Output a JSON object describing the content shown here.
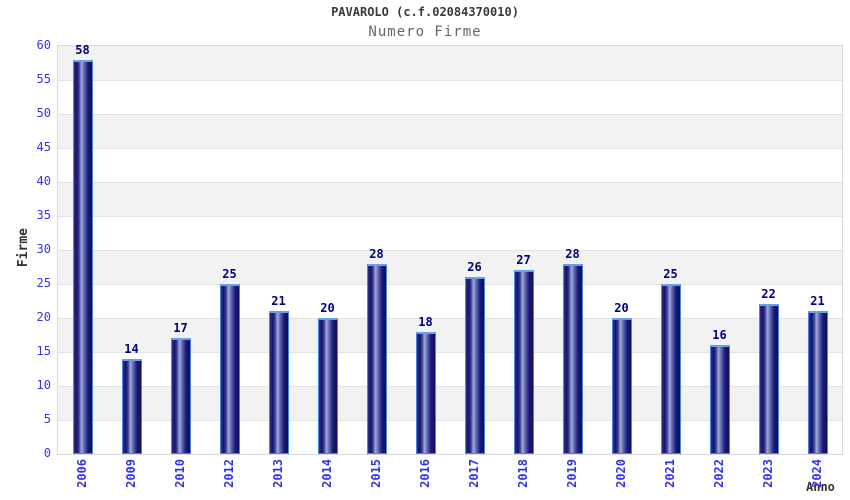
{
  "header": {
    "title": "PAVAROLO (c.f.02084370010)",
    "subtitle": "Numero Firme"
  },
  "chart_data": {
    "type": "bar",
    "title": "PAVAROLO (c.f.02084370010)",
    "subtitle": "Numero Firme",
    "categories": [
      "2006",
      "2009",
      "2010",
      "2012",
      "2013",
      "2014",
      "2015",
      "2016",
      "2017",
      "2018",
      "2019",
      "2020",
      "2021",
      "2022",
      "2023",
      "2024"
    ],
    "values": [
      58,
      14,
      17,
      25,
      21,
      20,
      28,
      18,
      26,
      27,
      28,
      20,
      25,
      16,
      22,
      21
    ],
    "xlabel": "Anno",
    "ylabel": "Firme",
    "ylim": [
      0,
      60
    ],
    "ytick_step": 5,
    "yticks": [
      0,
      5,
      10,
      15,
      20,
      25,
      30,
      35,
      40,
      45,
      50,
      55,
      60
    ],
    "grid": true,
    "legend": "none",
    "colors": {
      "bar_dark": "#0d0d62",
      "bar_highlight": "#a2abdc",
      "bar_edge": "#4a86e0",
      "bar_top_cap": "#69a0ea",
      "value_label": "#00007d",
      "tick_label": "#3333f0",
      "axis_title": "#333333",
      "band_gray": "#f2f2f2",
      "band_white": "#ffffff",
      "gridline": "#e3e3e3",
      "plot_border": "#d8d8d8",
      "title_color": "#3a3a3a",
      "subtitle_color": "#666666"
    }
  }
}
